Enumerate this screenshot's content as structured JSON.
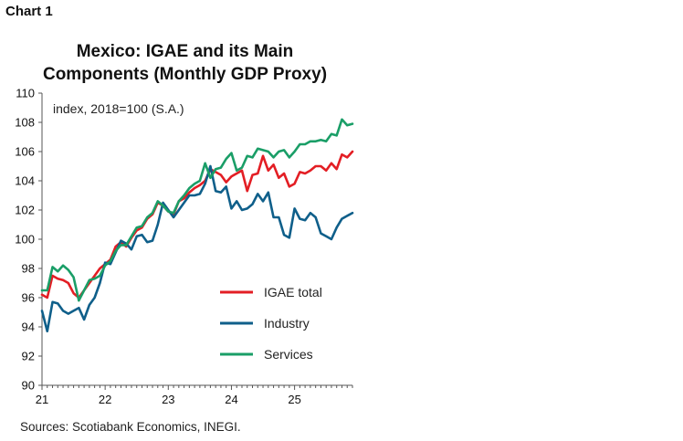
{
  "header": {
    "chart_label": "Chart 1"
  },
  "title_lines": [
    "Mexico: IGAE and its Main",
    "Components (Monthly GDP Proxy)"
  ],
  "source": "Sources: Scotiabank Economics, INEGI.",
  "colors": {
    "igae": "#e31e24",
    "industry": "#0f5f8a",
    "services": "#1a9e67",
    "axis": "#555555"
  },
  "chart_data": {
    "type": "line",
    "title": "Mexico: IGAE and its Main Components (Monthly GDP Proxy)",
    "unit_label": "index, 2018=100 (S.A.)",
    "ylim": [
      90,
      110
    ],
    "yticks": [
      90,
      92,
      94,
      96,
      98,
      100,
      102,
      104,
      106,
      108,
      110
    ],
    "x_start": "2021-01",
    "x_end": "2025-12",
    "xticks": [
      {
        "label": "21",
        "date": "2021-01"
      },
      {
        "label": "22",
        "date": "2022-01"
      },
      {
        "label": "23",
        "date": "2023-01"
      },
      {
        "label": "24",
        "date": "2024-01"
      },
      {
        "label": "25",
        "date": "2025-01"
      }
    ],
    "grid": false,
    "legend": "center-right",
    "series": [
      {
        "name": "IGAE total",
        "color": "#e31e24",
        "start": "2021-01",
        "values": [
          96.2,
          96.0,
          97.5,
          97.3,
          97.2,
          97.0,
          96.3,
          96.0,
          96.5,
          97.0,
          97.5,
          98.0,
          98.3,
          98.6,
          99.5,
          99.8,
          99.5,
          100.1,
          100.6,
          100.8,
          101.4,
          101.7,
          102.5,
          102.3,
          101.9,
          101.7,
          102.6,
          102.8,
          103.2,
          103.5,
          103.7,
          104.0,
          104.8,
          104.6,
          104.4,
          103.9,
          104.3,
          104.5,
          104.7,
          103.3,
          104.4,
          104.5,
          105.7,
          104.7,
          105.1,
          104.2,
          104.5,
          103.6,
          103.8,
          104.6,
          104.5,
          104.7,
          105.0,
          105.0,
          104.7,
          105.2,
          104.8,
          105.8,
          105.6,
          106.0
        ]
      },
      {
        "name": "Industry",
        "color": "#0f5f8a",
        "start": "2021-01",
        "values": [
          95.1,
          93.7,
          95.7,
          95.6,
          95.1,
          94.9,
          95.1,
          95.3,
          94.5,
          95.5,
          96.0,
          97.0,
          98.4,
          98.3,
          99.1,
          99.9,
          99.7,
          99.3,
          100.2,
          100.3,
          99.8,
          99.9,
          101.0,
          102.5,
          102.0,
          101.5,
          102.0,
          102.5,
          103.0,
          103.0,
          103.1,
          103.8,
          105.0,
          103.3,
          103.2,
          103.6,
          102.1,
          102.6,
          102.0,
          102.1,
          102.4,
          103.1,
          102.6,
          103.2,
          101.5,
          101.5,
          100.3,
          100.1,
          102.1,
          101.4,
          101.3,
          101.8,
          101.5,
          100.4,
          100.2,
          100.0,
          100.8,
          101.4,
          101.6,
          101.8
        ]
      },
      {
        "name": "Services",
        "color": "#1a9e67",
        "start": "2021-01",
        "values": [
          96.5,
          96.5,
          98.1,
          97.8,
          98.2,
          97.9,
          97.4,
          95.8,
          96.5,
          97.2,
          97.3,
          97.5,
          98.2,
          98.5,
          99.2,
          99.6,
          99.6,
          100.2,
          100.8,
          100.9,
          101.5,
          101.8,
          102.6,
          102.3,
          101.9,
          101.8,
          102.6,
          103.0,
          103.5,
          103.8,
          104.0,
          105.2,
          104.2,
          104.8,
          104.9,
          105.5,
          105.9,
          104.7,
          104.9,
          105.7,
          105.6,
          106.2,
          106.1,
          106.0,
          105.6,
          106.0,
          106.1,
          105.6,
          106.0,
          106.5,
          106.5,
          106.7,
          106.7,
          106.8,
          106.7,
          107.2,
          107.1,
          108.2,
          107.8,
          107.9
        ]
      }
    ]
  }
}
